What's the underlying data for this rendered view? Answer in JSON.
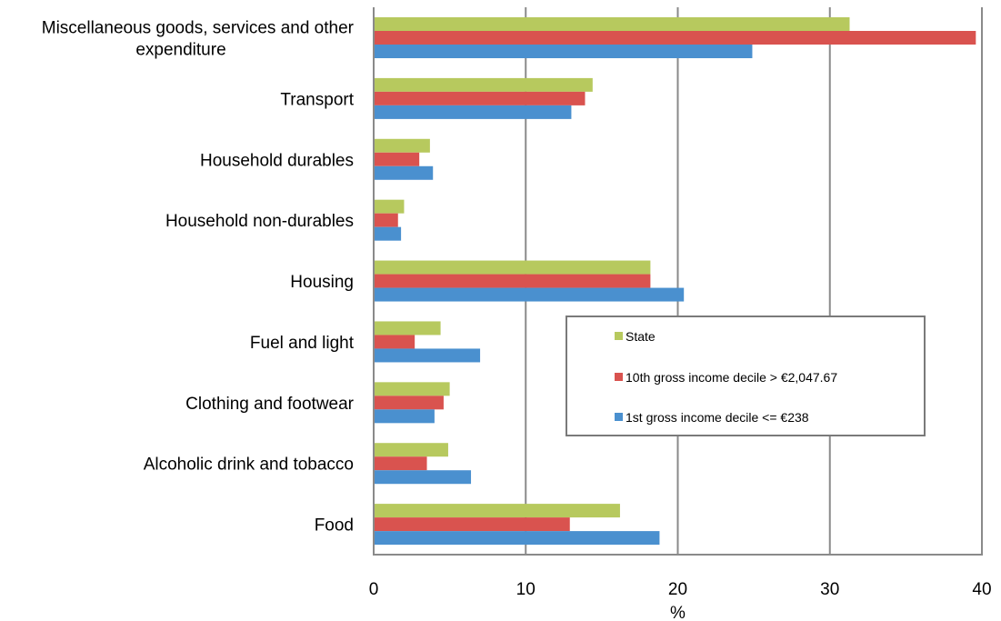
{
  "chart_data": {
    "type": "bar",
    "orientation": "horizontal",
    "title": "",
    "xlabel": "%",
    "ylabel": "",
    "xlim": [
      0,
      40
    ],
    "xticks": [
      "0",
      "10",
      "20",
      "30",
      "40"
    ],
    "grid": "vertical",
    "legend_position": "right-center",
    "categories": [
      [
        "Miscellaneous goods, services and other",
        "expenditure"
      ],
      [
        "Transport"
      ],
      [
        "Household durables"
      ],
      [
        "Household non-durables"
      ],
      [
        "Housing"
      ],
      [
        "Fuel and light"
      ],
      [
        "Clothing and footwear"
      ],
      [
        "Alcoholic drink and tobacco"
      ],
      [
        "Food"
      ]
    ],
    "series": [
      {
        "name": "State",
        "color": "#b7c95e",
        "values": [
          31.3,
          14.4,
          3.7,
          2.0,
          18.2,
          4.4,
          5.0,
          4.9,
          16.2
        ]
      },
      {
        "name": "10th gross income decile > €2,047.67",
        "color": "#d9534f",
        "values": [
          39.6,
          13.9,
          3.0,
          1.6,
          18.2,
          2.7,
          4.6,
          3.5,
          12.9
        ]
      },
      {
        "name": "1st gross income decile <= €238",
        "color": "#4a90cf",
        "values": [
          24.9,
          13.0,
          3.9,
          1.8,
          20.4,
          7.0,
          4.0,
          6.4,
          18.8
        ]
      }
    ],
    "legend_order": [
      0,
      1,
      2
    ]
  }
}
